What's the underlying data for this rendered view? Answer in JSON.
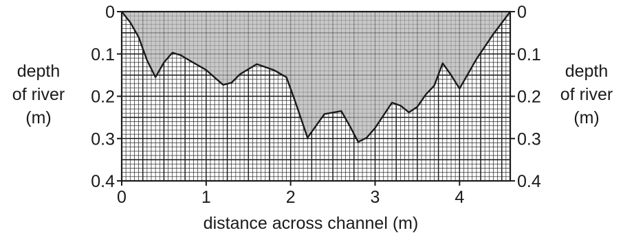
{
  "chart_data": {
    "type": "area",
    "title": "",
    "xlabel": "distance across channel (m)",
    "ylabel_left": [
      "depth",
      "of river",
      "(m)"
    ],
    "ylabel_right": [
      "depth",
      "of river",
      "(m)"
    ],
    "xlim": [
      0,
      4.6
    ],
    "ylim": [
      0,
      0.4
    ],
    "y_inverted": true,
    "x_ticks": [
      0,
      1,
      2,
      3,
      4
    ],
    "x_tick_labels": [
      "0",
      "1",
      "2",
      "3",
      "4"
    ],
    "y_ticks": [
      0,
      0.1,
      0.2,
      0.3,
      0.4
    ],
    "y_tick_labels": [
      "0",
      "0.1",
      "0.2",
      "0.3",
      "0.4"
    ],
    "grid": true,
    "fill_color": "#c8c8c8",
    "line_color": "#1a1a1a",
    "series": [
      {
        "x": [
          0,
          0.1,
          0.2,
          0.3,
          0.4,
          0.5,
          0.6,
          0.7,
          0.8,
          1.0,
          1.2,
          1.3,
          1.4,
          1.6,
          1.8,
          1.95,
          2.05,
          2.2,
          2.3,
          2.4,
          2.6,
          2.7,
          2.8,
          2.9,
          3.0,
          3.2,
          3.3,
          3.4,
          3.5,
          3.6,
          3.7,
          3.8,
          3.9,
          4.0,
          4.2,
          4.4,
          4.6
        ],
        "y": [
          0,
          0.025,
          0.06,
          0.115,
          0.155,
          0.12,
          0.097,
          0.103,
          0.115,
          0.138,
          0.173,
          0.168,
          0.148,
          0.124,
          0.138,
          0.155,
          0.21,
          0.298,
          0.27,
          0.242,
          0.235,
          0.27,
          0.308,
          0.298,
          0.275,
          0.215,
          0.222,
          0.238,
          0.225,
          0.196,
          0.175,
          0.122,
          0.15,
          0.182,
          0.112,
          0.053,
          0
        ]
      }
    ]
  }
}
